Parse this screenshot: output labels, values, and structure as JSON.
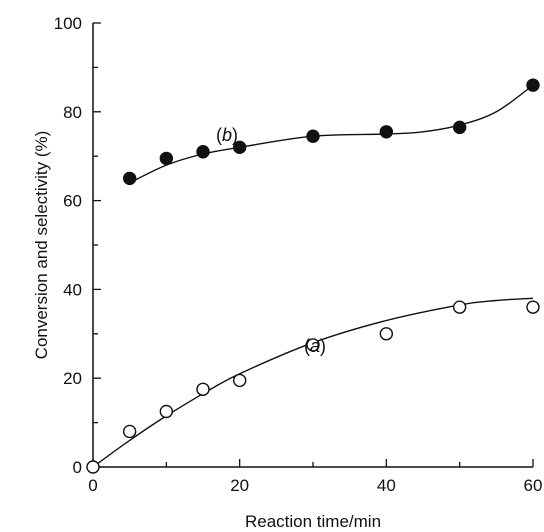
{
  "chart_data": {
    "type": "scatter",
    "title": "",
    "xlabel": "Reaction time/min",
    "ylabel": "Conversion and selectivity (%)",
    "xlim": [
      0,
      60
    ],
    "ylim": [
      0,
      100
    ],
    "x_ticks": [
      "0",
      "20",
      "40",
      "60"
    ],
    "y_ticks": [
      "0",
      "20",
      "40",
      "60",
      "80",
      "100"
    ],
    "grid": false,
    "series": [
      {
        "name": "(a)",
        "marker": "open-circle",
        "x": [
          0,
          5,
          10,
          15,
          20,
          30,
          40,
          50,
          60
        ],
        "y": [
          0,
          8,
          12.5,
          17.5,
          19.5,
          27.5,
          30,
          36,
          36
        ],
        "fit_curve": {
          "x": [
            0,
            5,
            10,
            15,
            20,
            30,
            40,
            50,
            55,
            60
          ],
          "y": [
            0,
            6,
            11.5,
            16.5,
            21,
            28,
            33,
            36.5,
            37.5,
            38
          ]
        },
        "label_text": "a"
      },
      {
        "name": "(b)",
        "marker": "filled-circle",
        "x": [
          5,
          10,
          15,
          20,
          30,
          40,
          50,
          60
        ],
        "y": [
          65,
          69.5,
          71,
          72,
          74.5,
          75.5,
          76.5,
          86
        ],
        "fit_curve": {
          "x": [
            5,
            10,
            15,
            20,
            30,
            40,
            45,
            50,
            55,
            60
          ],
          "y": [
            64,
            68,
            70.5,
            72,
            74.5,
            75,
            75.5,
            77,
            80,
            86
          ]
        },
        "label_text": "b"
      }
    ]
  }
}
